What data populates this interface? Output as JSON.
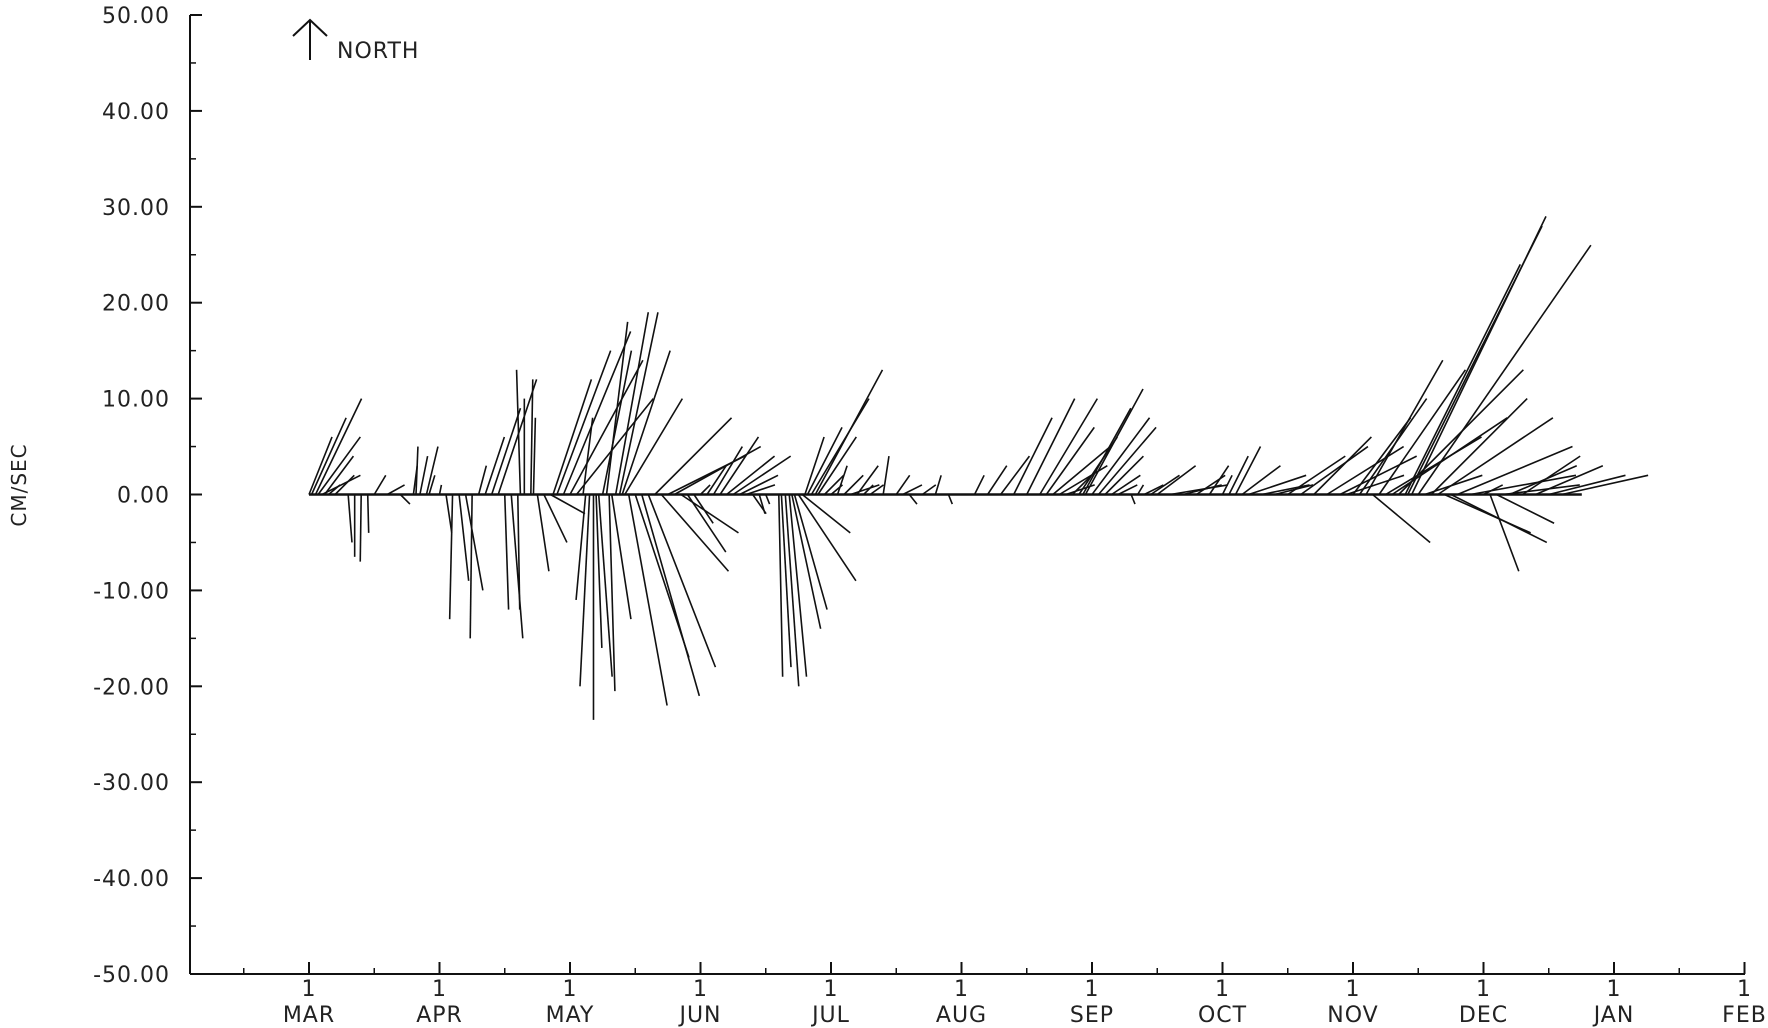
{
  "chart_data": {
    "type": "stick-vector",
    "ylabel": "CM/SEC",
    "ylim": [
      -50,
      50
    ],
    "y_ticks": [
      "50.00",
      "40.00",
      "30.00",
      "20.00",
      "10.00",
      "0.00",
      "-10.00",
      "-20.00",
      "-30.00",
      "-40.00",
      "-50.00"
    ],
    "y_tick_values": [
      50,
      40,
      30,
      20,
      10,
      0,
      -10,
      -20,
      -30,
      -40,
      -50
    ],
    "x_ticks": [
      {
        "day": "1",
        "month": "MAR"
      },
      {
        "day": "1",
        "month": "APR"
      },
      {
        "day": "1",
        "month": "MAY"
      },
      {
        "day": "1",
        "month": "JUN"
      },
      {
        "day": "1",
        "month": "JUL"
      },
      {
        "day": "1",
        "month": "AUG"
      },
      {
        "day": "1",
        "month": "SEP"
      },
      {
        "day": "1",
        "month": "OCT"
      },
      {
        "day": "1",
        "month": "NOV"
      },
      {
        "day": "1",
        "month": "DEC"
      },
      {
        "day": "1",
        "month": "JAN"
      },
      {
        "day": "1",
        "month": "FEB"
      }
    ],
    "north_indicator": "NORTH",
    "colors": {
      "ink": "#111111",
      "background": "#ffffff"
    },
    "vectors": [
      {
        "month": 0.0,
        "u": 24,
        "v": 6
      },
      {
        "month": 0.02,
        "u": 36,
        "v": 8
      },
      {
        "month": 0.05,
        "u": 48,
        "v": 10
      },
      {
        "month": 0.07,
        "u": 44,
        "v": 6
      },
      {
        "month": 0.1,
        "u": 40,
        "v": 2
      },
      {
        "month": 0.12,
        "u": 30,
        "v": 4
      },
      {
        "month": 0.15,
        "u": 12,
        "v": 1
      },
      {
        "month": 0.2,
        "u": 20,
        "v": 2
      },
      {
        "month": 0.3,
        "u": 4,
        "v": -5
      },
      {
        "month": 0.35,
        "u": 0,
        "v": -6.5
      },
      {
        "month": 0.4,
        "u": -1,
        "v": -7
      },
      {
        "month": 0.45,
        "u": 1,
        "v": -4
      },
      {
        "month": 0.5,
        "u": 12,
        "v": 2
      },
      {
        "month": 0.6,
        "u": 18,
        "v": 1
      },
      {
        "month": 0.7,
        "u": 10,
        "v": -1
      },
      {
        "month": 0.8,
        "u": 4,
        "v": 3
      },
      {
        "month": 0.82,
        "u": 2,
        "v": 5
      },
      {
        "month": 0.85,
        "u": 8,
        "v": 4
      },
      {
        "month": 0.9,
        "u": 12,
        "v": 5
      },
      {
        "month": 0.92,
        "u": 6,
        "v": 2
      },
      {
        "month": 1.0,
        "u": 2,
        "v": 1
      },
      {
        "month": 1.05,
        "u": 6,
        "v": -4
      },
      {
        "month": 1.1,
        "u": -3,
        "v": -13
      },
      {
        "month": 1.15,
        "u": 10,
        "v": -9
      },
      {
        "month": 1.2,
        "u": 18,
        "v": -10
      },
      {
        "month": 1.25,
        "u": -2,
        "v": -15
      },
      {
        "month": 1.3,
        "u": 8,
        "v": 3
      },
      {
        "month": 1.35,
        "u": 20,
        "v": 6
      },
      {
        "month": 1.4,
        "u": 30,
        "v": 9
      },
      {
        "month": 1.45,
        "u": 40,
        "v": 12
      },
      {
        "month": 1.5,
        "u": 4,
        "v": -12
      },
      {
        "month": 1.55,
        "u": 12,
        "v": -15
      },
      {
        "month": 1.6,
        "u": 2,
        "v": -12
      },
      {
        "month": 1.62,
        "u": -4,
        "v": 13
      },
      {
        "month": 1.65,
        "u": 0,
        "v": 10
      },
      {
        "month": 1.7,
        "u": 2,
        "v": 12
      },
      {
        "month": 1.72,
        "u": 2,
        "v": 8
      },
      {
        "month": 1.75,
        "u": 12,
        "v": -8
      },
      {
        "month": 1.8,
        "u": 24,
        "v": -5
      },
      {
        "month": 1.85,
        "u": 36,
        "v": -2
      },
      {
        "month": 1.87,
        "u": 40,
        "v": 12
      },
      {
        "month": 1.9,
        "u": 56,
        "v": 15
      },
      {
        "month": 1.95,
        "u": 70,
        "v": 17
      },
      {
        "month": 2.0,
        "u": 76,
        "v": 14
      },
      {
        "month": 2.05,
        "u": 80,
        "v": 10
      },
      {
        "month": 2.1,
        "u": 10,
        "v": 8
      },
      {
        "month": 2.12,
        "u": -10,
        "v": -11
      },
      {
        "month": 2.15,
        "u": -10,
        "v": -20
      },
      {
        "month": 2.18,
        "u": 0,
        "v": -23.5
      },
      {
        "month": 2.2,
        "u": 6,
        "v": -16
      },
      {
        "month": 2.22,
        "u": 14,
        "v": -19
      },
      {
        "month": 2.25,
        "u": 30,
        "v": 15
      },
      {
        "month": 2.28,
        "u": 22,
        "v": 18
      },
      {
        "month": 2.3,
        "u": 6,
        "v": -20.5
      },
      {
        "month": 2.32,
        "u": 20,
        "v": -13
      },
      {
        "month": 2.35,
        "u": 34,
        "v": 19
      },
      {
        "month": 2.38,
        "u": 40,
        "v": 19
      },
      {
        "month": 2.4,
        "u": 50,
        "v": 15
      },
      {
        "month": 2.42,
        "u": 60,
        "v": 10
      },
      {
        "month": 2.45,
        "u": 40,
        "v": -22
      },
      {
        "month": 2.5,
        "u": 56,
        "v": -17
      },
      {
        "month": 2.55,
        "u": 60,
        "v": -21
      },
      {
        "month": 2.6,
        "u": 70,
        "v": -18
      },
      {
        "month": 2.65,
        "u": 80,
        "v": 8
      },
      {
        "month": 2.7,
        "u": 70,
        "v": -8
      },
      {
        "month": 2.75,
        "u": 80,
        "v": 4
      },
      {
        "month": 2.8,
        "u": 90,
        "v": 5
      },
      {
        "month": 2.85,
        "u": 60,
        "v": -4
      },
      {
        "month": 2.9,
        "u": 40,
        "v": -6
      },
      {
        "month": 2.95,
        "u": 20,
        "v": -3
      },
      {
        "month": 3.0,
        "u": 10,
        "v": 1
      },
      {
        "month": 3.05,
        "u": 20,
        "v": 3
      },
      {
        "month": 3.1,
        "u": 30,
        "v": 5
      },
      {
        "month": 3.15,
        "u": 40,
        "v": 6
      },
      {
        "month": 3.2,
        "u": 50,
        "v": 4
      },
      {
        "month": 3.25,
        "u": 60,
        "v": 4
      },
      {
        "month": 3.3,
        "u": 40,
        "v": 2
      },
      {
        "month": 3.35,
        "u": 30,
        "v": 1
      },
      {
        "month": 3.4,
        "u": 14,
        "v": -2
      },
      {
        "month": 3.45,
        "u": 6,
        "v": -2
      },
      {
        "month": 3.5,
        "u": 4,
        "v": -1
      },
      {
        "month": 3.6,
        "u": 4,
        "v": -19
      },
      {
        "month": 3.62,
        "u": 10,
        "v": -18
      },
      {
        "month": 3.65,
        "u": 14,
        "v": -20
      },
      {
        "month": 3.68,
        "u": 18,
        "v": -19
      },
      {
        "month": 3.7,
        "u": 30,
        "v": -14
      },
      {
        "month": 3.72,
        "u": 34,
        "v": -12
      },
      {
        "month": 3.75,
        "u": 60,
        "v": -9
      },
      {
        "month": 3.78,
        "u": 50,
        "v": -4
      },
      {
        "month": 3.8,
        "u": 20,
        "v": 6
      },
      {
        "month": 3.82,
        "u": 36,
        "v": 7
      },
      {
        "month": 3.85,
        "u": 60,
        "v": 10
      },
      {
        "month": 3.88,
        "u": 70,
        "v": 13
      },
      {
        "month": 3.9,
        "u": 40,
        "v": 6
      },
      {
        "month": 3.95,
        "u": 20,
        "v": 2
      },
      {
        "month": 4.0,
        "u": 12,
        "v": 1
      },
      {
        "month": 4.05,
        "u": 10,
        "v": 3
      },
      {
        "month": 4.1,
        "u": 20,
        "v": 2
      },
      {
        "month": 4.15,
        "u": 30,
        "v": 1
      },
      {
        "month": 4.2,
        "u": 22,
        "v": 3
      },
      {
        "month": 4.25,
        "u": 10,
        "v": 1
      },
      {
        "month": 4.3,
        "u": 14,
        "v": 1
      },
      {
        "month": 4.4,
        "u": 6,
        "v": 4
      },
      {
        "month": 4.5,
        "u": 14,
        "v": 2
      },
      {
        "month": 4.55,
        "u": 20,
        "v": 1
      },
      {
        "month": 4.6,
        "u": 8,
        "v": -1
      },
      {
        "month": 4.7,
        "u": 14,
        "v": 1
      },
      {
        "month": 4.8,
        "u": 6,
        "v": 2
      },
      {
        "month": 4.9,
        "u": 4,
        "v": -1
      },
      {
        "month": 5.0,
        "u": 4,
        "v": 0
      },
      {
        "month": 5.1,
        "u": 10,
        "v": 2
      },
      {
        "month": 5.2,
        "u": 20,
        "v": 3
      },
      {
        "month": 5.3,
        "u": 30,
        "v": 4
      },
      {
        "month": 5.4,
        "u": 40,
        "v": 8
      },
      {
        "month": 5.5,
        "u": 50,
        "v": 10
      },
      {
        "month": 5.6,
        "u": 60,
        "v": 10
      },
      {
        "month": 5.65,
        "u": 50,
        "v": 7
      },
      {
        "month": 5.7,
        "u": 60,
        "v": 5
      },
      {
        "month": 5.75,
        "u": 50,
        "v": 3
      },
      {
        "month": 5.8,
        "u": 30,
        "v": 1
      },
      {
        "month": 5.85,
        "u": 20,
        "v": 2
      },
      {
        "month": 5.9,
        "u": 40,
        "v": 6
      },
      {
        "month": 5.93,
        "u": 50,
        "v": 9
      },
      {
        "month": 5.95,
        "u": 60,
        "v": 11
      },
      {
        "month": 6.0,
        "u": 60,
        "v": 8
      },
      {
        "month": 6.05,
        "u": 60,
        "v": 7
      },
      {
        "month": 6.1,
        "u": 40,
        "v": 4
      },
      {
        "month": 6.15,
        "u": 30,
        "v": 2
      },
      {
        "month": 6.2,
        "u": 20,
        "v": 1
      },
      {
        "month": 6.3,
        "u": 4,
        "v": -1
      },
      {
        "month": 6.35,
        "u": 6,
        "v": 1
      },
      {
        "month": 6.4,
        "u": 20,
        "v": 1
      },
      {
        "month": 6.45,
        "u": 30,
        "v": 2
      },
      {
        "month": 6.5,
        "u": 40,
        "v": 3
      },
      {
        "month": 6.6,
        "u": 60,
        "v": 1
      },
      {
        "month": 6.7,
        "u": 40,
        "v": 1
      },
      {
        "month": 6.8,
        "u": 30,
        "v": 2
      },
      {
        "month": 6.9,
        "u": 20,
        "v": 3
      },
      {
        "month": 7.0,
        "u": 10,
        "v": 2
      },
      {
        "month": 7.05,
        "u": 20,
        "v": 4
      },
      {
        "month": 7.1,
        "u": 26,
        "v": 5
      },
      {
        "month": 7.15,
        "u": 40,
        "v": 3
      },
      {
        "month": 7.2,
        "u": 60,
        "v": 2
      },
      {
        "month": 7.3,
        "u": 50,
        "v": 1
      },
      {
        "month": 7.4,
        "u": 40,
        "v": 1
      },
      {
        "month": 7.5,
        "u": 60,
        "v": 4
      },
      {
        "month": 7.6,
        "u": 70,
        "v": 5
      },
      {
        "month": 7.7,
        "u": 60,
        "v": 6
      },
      {
        "month": 7.8,
        "u": 80,
        "v": 5
      },
      {
        "month": 7.9,
        "u": 80,
        "v": 4
      },
      {
        "month": 7.95,
        "u": 60,
        "v": 2
      },
      {
        "month": 8.0,
        "u": 60,
        "v": 8
      },
      {
        "month": 8.05,
        "u": 70,
        "v": 10
      },
      {
        "month": 8.1,
        "u": 80,
        "v": 14
      },
      {
        "month": 8.15,
        "u": 60,
        "v": -5
      },
      {
        "month": 8.2,
        "u": 90,
        "v": 13
      },
      {
        "month": 8.25,
        "u": 100,
        "v": 6
      },
      {
        "month": 8.3,
        "u": 120,
        "v": 8
      },
      {
        "month": 8.35,
        "u": 130,
        "v": 13
      },
      {
        "month": 8.4,
        "u": 120,
        "v": 24
      },
      {
        "month": 8.42,
        "u": 140,
        "v": 28
      },
      {
        "month": 8.45,
        "u": 140,
        "v": 29
      },
      {
        "month": 8.5,
        "u": 180,
        "v": 26
      },
      {
        "month": 8.55,
        "u": 60,
        "v": 2
      },
      {
        "month": 8.6,
        "u": 100,
        "v": 10
      },
      {
        "month": 8.65,
        "u": 120,
        "v": 8
      },
      {
        "month": 8.7,
        "u": 90,
        "v": -4
      },
      {
        "month": 8.75,
        "u": 100,
        "v": -5
      },
      {
        "month": 8.8,
        "u": 120,
        "v": 5
      },
      {
        "month": 8.9,
        "u": 110,
        "v": 2
      },
      {
        "month": 9.0,
        "u": 20,
        "v": 1
      },
      {
        "month": 9.05,
        "u": 30,
        "v": -8
      },
      {
        "month": 9.1,
        "u": 60,
        "v": -3
      },
      {
        "month": 9.15,
        "u": 80,
        "v": 1
      },
      {
        "month": 9.2,
        "u": 70,
        "v": 3
      },
      {
        "month": 9.3,
        "u": 60,
        "v": 4
      },
      {
        "month": 9.4,
        "u": 70,
        "v": 3
      },
      {
        "month": 9.5,
        "u": 80,
        "v": 2
      },
      {
        "month": 9.6,
        "u": 90,
        "v": 2
      }
    ]
  }
}
